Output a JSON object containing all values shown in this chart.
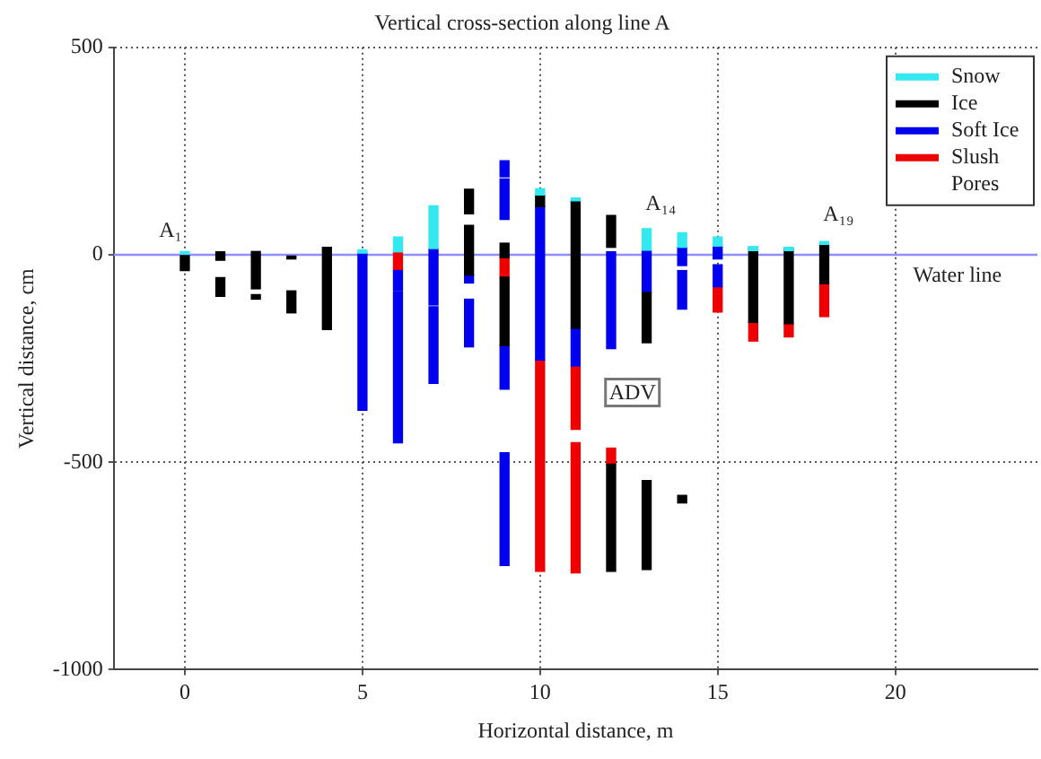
{
  "chart_data": {
    "type": "bar",
    "title": "Vertical cross-section along line A",
    "xlabel": "Horizontal distance, m",
    "ylabel": "Vertical distance, cm",
    "xlim": [
      -2,
      24
    ],
    "xticks": [
      0,
      5,
      10,
      15,
      20
    ],
    "ylim": [
      -1000,
      500
    ],
    "yticks": [
      -1000,
      -500,
      0,
      500
    ],
    "grid": true,
    "legend": "top right",
    "series": [
      {
        "name": "Snow",
        "color": "#33e8ee",
        "x": [
          0,
          5,
          6,
          7,
          10,
          11,
          13,
          14,
          15,
          16,
          17,
          18
        ],
        "base": [
          0,
          4,
          7,
          15,
          144,
          130,
          11,
          18,
          21,
          10,
          10,
          25
        ],
        "values": [
          8,
          8,
          36,
          103,
          15,
          7,
          52,
          35,
          22,
          10,
          8,
          7
        ]
      },
      {
        "name": "Ice",
        "color": "#000000",
        "x": [
          0,
          1,
          2,
          3,
          4,
          8,
          9,
          10,
          11,
          12,
          13,
          14,
          16,
          17,
          18
        ],
        "base": [
          -38,
          -13,
          -82,
          -10,
          -180,
          99,
          -7,
          116,
          -177,
          18,
          -212,
          -598,
          -163,
          -166,
          -70
        ],
        "values": [
          38,
          20,
          90,
          7,
          198,
          59,
          35,
          28,
          307,
          77,
          121,
          18,
          181,
          181,
          95
        ]
      },
      {
        "color": "#000000",
        "x": [
          1,
          2,
          3,
          8,
          9,
          12,
          13
        ],
        "base": [
          -100,
          -107,
          -140,
          -49,
          -219,
          -763,
          -759
        ],
        "values": [
          45,
          11,
          53,
          120,
          165,
          258,
          215
        ]
      },
      {
        "name": "Soft Ice",
        "color": "#0000ee",
        "x": [
          5,
          6,
          7,
          8,
          9,
          10,
          11,
          12,
          13,
          14,
          15
        ],
        "base": [
          -375,
          -87,
          -121,
          -68,
          188,
          -254,
          -268,
          -226,
          -91,
          -26,
          -10
        ],
        "values": [
          379,
          49,
          136,
          19,
          39,
          370,
          91,
          233,
          102,
          44,
          31
        ]
      },
      {
        "color": "#0000ee",
        "x": [
          6,
          7,
          8,
          9,
          14,
          15
        ],
        "base": [
          -453,
          -310,
          -222,
          85,
          -131,
          -77
        ],
        "values": [
          363,
          185,
          115,
          98,
          93,
          53
        ]
      },
      {
        "color": "#0000ee",
        "x": [
          9
        ],
        "base": [
          -324
        ],
        "values": [
          105
        ]
      },
      {
        "color": "#0000ee",
        "x": [
          9
        ],
        "base": [
          -749
        ],
        "values": [
          272
        ]
      },
      {
        "name": "Slush",
        "color": "#ee0000",
        "x": [
          6,
          9,
          10,
          11,
          12,
          15,
          16,
          17,
          18
        ],
        "base": [
          -38,
          -54,
          -763,
          -421,
          -505,
          -138,
          -208,
          -198,
          -149
        ],
        "values": [
          45,
          47,
          509,
          153,
          39,
          61,
          45,
          32,
          79
        ]
      },
      {
        "color": "#ee0000",
        "x": [
          11
        ],
        "base": [
          -767
        ],
        "values": [
          314
        ]
      },
      {
        "name": "Pores"
      }
    ],
    "ref_lines": [
      {
        "axis": "y",
        "value": 0,
        "label": "Water line",
        "color": "#8f8fff"
      }
    ],
    "annotations": [
      "A₁",
      "A₁₄",
      "A₁₉",
      "ADV"
    ]
  }
}
